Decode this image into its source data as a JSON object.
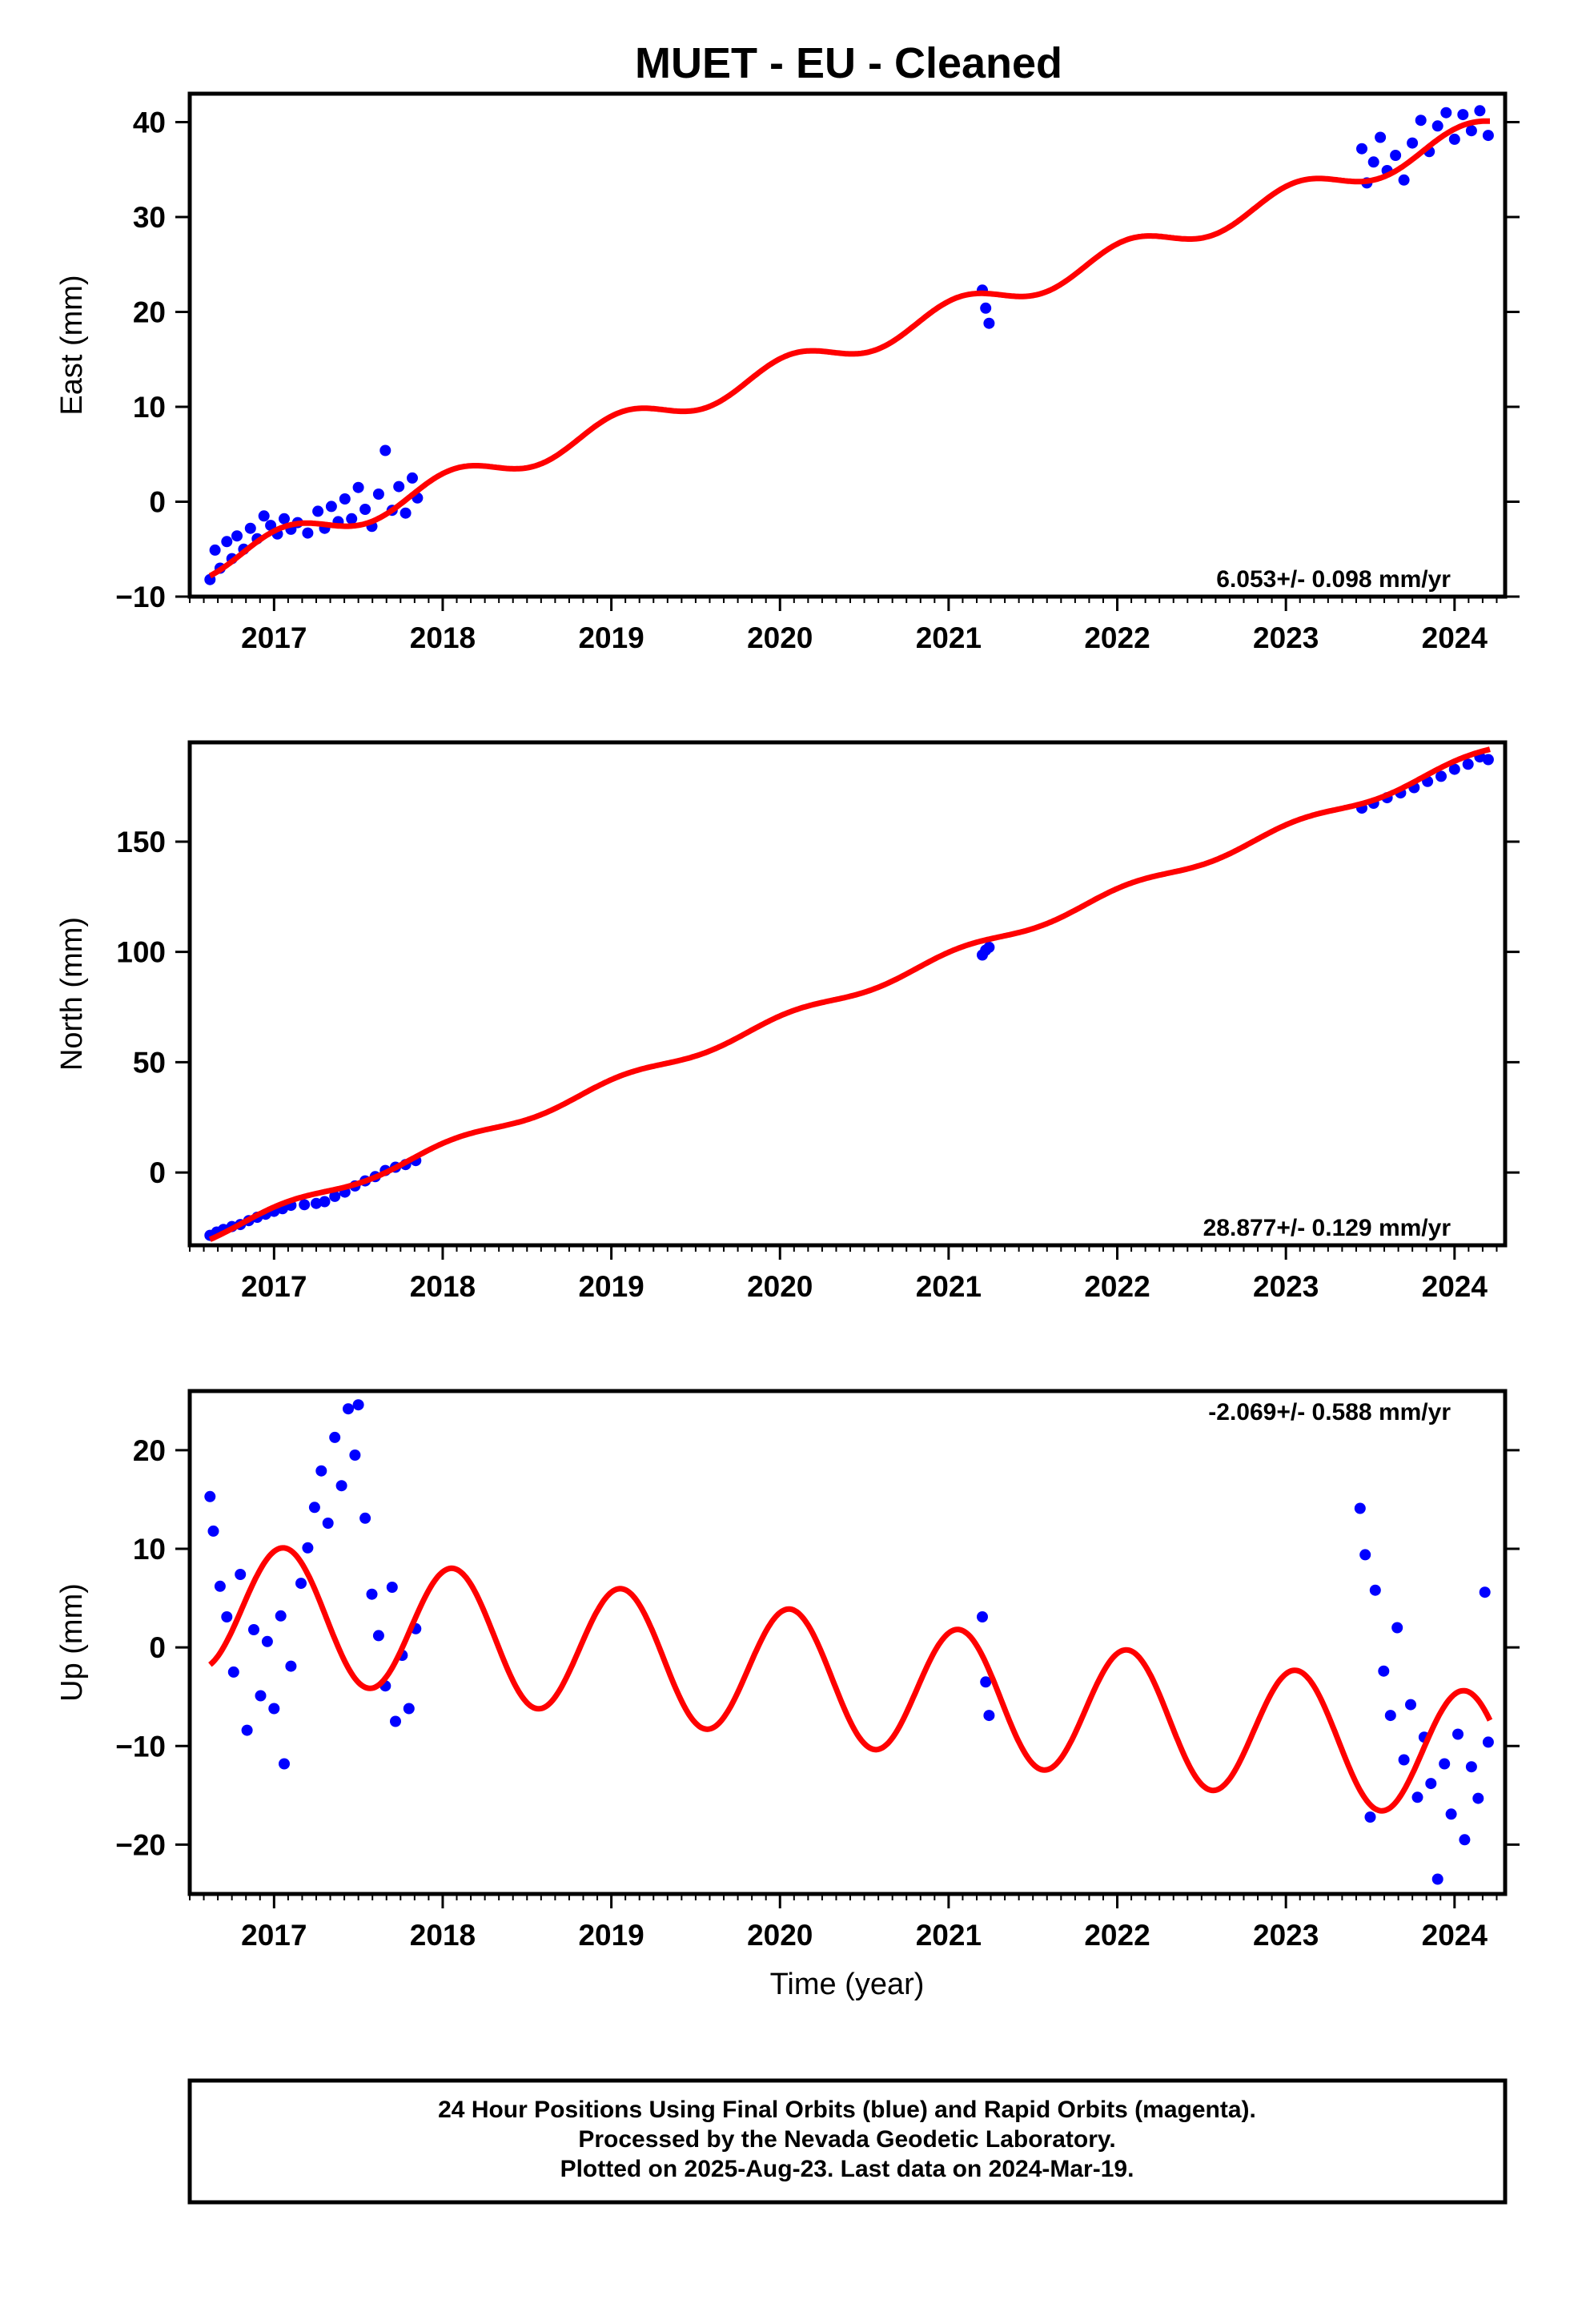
{
  "figure": {
    "title": "MUET  - EU - Cleaned",
    "xlabel": "Time (year)",
    "footer": [
      "24 Hour Positions Using Final Orbits (blue) and Rapid Orbits (magenta).",
      "Processed by the Nevada Geodetic Laboratory.",
      "Plotted on 2025-Aug-23. Last data on 2024-Mar-19."
    ]
  },
  "colors": {
    "observations": "#0000ff",
    "model_fit": "#ff0000",
    "frame": "#000000"
  },
  "chart_data": [
    {
      "type": "scatter",
      "ylabel": "East (mm)",
      "rate_label": "6.053+/- 0.098 mm/yr",
      "rate_label_position": "bottom-right",
      "xlim": [
        2016.5,
        2024.3
      ],
      "ylim": [
        -10,
        43
      ],
      "xticks": [
        2017,
        2018,
        2019,
        2020,
        2021,
        2022,
        2023,
        2024
      ],
      "yticks": [
        -10,
        0,
        10,
        20,
        30,
        40
      ],
      "fit": {
        "offset_at_2016_6": -6.6,
        "rate": 6.053,
        "annual_amplitude": 1.3
      },
      "series": [
        {
          "name": "observations",
          "points": [
            [
              2016.62,
              -8.2
            ],
            [
              2016.65,
              -5.1
            ],
            [
              2016.68,
              -7.0
            ],
            [
              2016.72,
              -4.2
            ],
            [
              2016.75,
              -6.0
            ],
            [
              2016.78,
              -3.6
            ],
            [
              2016.82,
              -5.0
            ],
            [
              2016.86,
              -2.8
            ],
            [
              2016.9,
              -3.9
            ],
            [
              2016.94,
              -1.5
            ],
            [
              2016.98,
              -2.5
            ],
            [
              2017.02,
              -3.4
            ],
            [
              2017.06,
              -1.8
            ],
            [
              2017.1,
              -2.9
            ],
            [
              2017.14,
              -2.2
            ],
            [
              2017.2,
              -3.3
            ],
            [
              2017.26,
              -1.0
            ],
            [
              2017.3,
              -2.8
            ],
            [
              2017.34,
              -0.5
            ],
            [
              2017.38,
              -2.1
            ],
            [
              2017.42,
              0.3
            ],
            [
              2017.46,
              -1.8
            ],
            [
              2017.5,
              1.5
            ],
            [
              2017.54,
              -0.8
            ],
            [
              2017.58,
              -2.6
            ],
            [
              2017.62,
              0.8
            ],
            [
              2017.66,
              5.4
            ],
            [
              2017.7,
              -0.9
            ],
            [
              2017.74,
              1.6
            ],
            [
              2017.78,
              -1.2
            ],
            [
              2017.82,
              2.5
            ],
            [
              2017.85,
              0.4
            ],
            [
              2021.2,
              22.3
            ],
            [
              2021.22,
              20.4
            ],
            [
              2021.24,
              18.8
            ],
            [
              2023.45,
              37.2
            ],
            [
              2023.48,
              33.6
            ],
            [
              2023.52,
              35.8
            ],
            [
              2023.56,
              38.4
            ],
            [
              2023.6,
              34.9
            ],
            [
              2023.65,
              36.5
            ],
            [
              2023.7,
              33.9
            ],
            [
              2023.75,
              37.8
            ],
            [
              2023.8,
              40.2
            ],
            [
              2023.85,
              36.9
            ],
            [
              2023.9,
              39.6
            ],
            [
              2023.95,
              41.0
            ],
            [
              2024.0,
              38.2
            ],
            [
              2024.05,
              40.8
            ],
            [
              2024.1,
              39.1
            ],
            [
              2024.15,
              41.2
            ],
            [
              2024.2,
              38.6
            ]
          ]
        }
      ]
    },
    {
      "type": "scatter",
      "ylabel": "North (mm)",
      "rate_label": "28.877+/- 0.129 mm/yr",
      "rate_label_position": "bottom-right",
      "xlim": [
        2016.5,
        2024.3
      ],
      "ylim": [
        -33,
        195
      ],
      "xticks": [
        2017,
        2018,
        2019,
        2020,
        2021,
        2022,
        2023,
        2024
      ],
      "yticks": [
        0,
        50,
        100,
        150
      ],
      "fit": {
        "offset_at_2016_6": -28.5,
        "rate": 28.877,
        "annual_amplitude": 2.0
      },
      "series": [
        {
          "name": "observations",
          "points": [
            [
              2016.62,
              -28.5
            ],
            [
              2016.66,
              -27.0
            ],
            [
              2016.7,
              -25.8
            ],
            [
              2016.75,
              -24.5
            ],
            [
              2016.8,
              -23.6
            ],
            [
              2016.85,
              -21.8
            ],
            [
              2016.9,
              -20.3
            ],
            [
              2016.95,
              -18.9
            ],
            [
              2017.0,
              -17.6
            ],
            [
              2017.05,
              -16.4
            ],
            [
              2017.1,
              -14.9
            ],
            [
              2017.18,
              -14.6
            ],
            [
              2017.25,
              -14.0
            ],
            [
              2017.3,
              -13.2
            ],
            [
              2017.36,
              -10.8
            ],
            [
              2017.42,
              -8.9
            ],
            [
              2017.48,
              -6.1
            ],
            [
              2017.54,
              -3.8
            ],
            [
              2017.6,
              -1.9
            ],
            [
              2017.66,
              0.9
            ],
            [
              2017.72,
              2.4
            ],
            [
              2017.78,
              3.6
            ],
            [
              2017.84,
              5.4
            ],
            [
              2021.2,
              98.6
            ],
            [
              2021.22,
              100.8
            ],
            [
              2021.24,
              102.1
            ],
            [
              2023.45,
              165.2
            ],
            [
              2023.52,
              167.4
            ],
            [
              2023.6,
              169.9
            ],
            [
              2023.68,
              172.1
            ],
            [
              2023.76,
              174.5
            ],
            [
              2023.84,
              177.3
            ],
            [
              2023.92,
              179.6
            ],
            [
              2024.0,
              182.8
            ],
            [
              2024.08,
              185.1
            ],
            [
              2024.15,
              188.4
            ],
            [
              2024.2,
              187.2
            ]
          ]
        }
      ]
    },
    {
      "type": "scatter",
      "ylabel": "Up (mm)",
      "rate_label": "-2.069+/- 0.588 mm/yr",
      "rate_label_position": "top-right",
      "xlim": [
        2016.5,
        2024.3
      ],
      "ylim": [
        -25,
        26
      ],
      "xticks": [
        2017,
        2018,
        2019,
        2020,
        2021,
        2022,
        2023,
        2024
      ],
      "yticks": [
        -20,
        -10,
        0,
        10,
        20
      ],
      "fit": {
        "offset_at_2016_6": 4.4,
        "rate": -2.069,
        "annual_amplitude": 6.6
      },
      "series": [
        {
          "name": "observations",
          "points": [
            [
              2016.62,
              15.3
            ],
            [
              2016.64,
              11.8
            ],
            [
              2016.68,
              6.2
            ],
            [
              2016.72,
              3.1
            ],
            [
              2016.76,
              -2.5
            ],
            [
              2016.8,
              7.4
            ],
            [
              2016.84,
              -8.4
            ],
            [
              2016.88,
              1.8
            ],
            [
              2016.92,
              -4.9
            ],
            [
              2016.96,
              0.6
            ],
            [
              2017.0,
              -6.2
            ],
            [
              2017.04,
              3.2
            ],
            [
              2017.06,
              -11.8
            ],
            [
              2017.1,
              -1.9
            ],
            [
              2017.16,
              6.5
            ],
            [
              2017.2,
              10.1
            ],
            [
              2017.24,
              14.2
            ],
            [
              2017.28,
              17.9
            ],
            [
              2017.32,
              12.6
            ],
            [
              2017.36,
              21.3
            ],
            [
              2017.4,
              16.4
            ],
            [
              2017.44,
              24.2
            ],
            [
              2017.48,
              19.5
            ],
            [
              2017.5,
              24.6
            ],
            [
              2017.54,
              13.1
            ],
            [
              2017.58,
              5.4
            ],
            [
              2017.62,
              1.2
            ],
            [
              2017.66,
              -3.9
            ],
            [
              2017.7,
              6.1
            ],
            [
              2017.72,
              -7.5
            ],
            [
              2017.76,
              -0.8
            ],
            [
              2017.8,
              -6.2
            ],
            [
              2017.84,
              1.9
            ],
            [
              2021.2,
              3.1
            ],
            [
              2021.22,
              -3.5
            ],
            [
              2021.24,
              -6.9
            ],
            [
              2023.44,
              14.1
            ],
            [
              2023.47,
              9.4
            ],
            [
              2023.5,
              -17.2
            ],
            [
              2023.53,
              5.8
            ],
            [
              2023.58,
              -2.4
            ],
            [
              2023.62,
              -6.9
            ],
            [
              2023.66,
              2.0
            ],
            [
              2023.7,
              -11.4
            ],
            [
              2023.74,
              -5.8
            ],
            [
              2023.78,
              -15.2
            ],
            [
              2023.82,
              -9.1
            ],
            [
              2023.86,
              -13.8
            ],
            [
              2023.9,
              -23.5
            ],
            [
              2023.94,
              -11.8
            ],
            [
              2023.98,
              -16.9
            ],
            [
              2024.02,
              -8.8
            ],
            [
              2024.06,
              -19.5
            ],
            [
              2024.1,
              -12.1
            ],
            [
              2024.14,
              -15.3
            ],
            [
              2024.18,
              5.6
            ],
            [
              2024.2,
              -9.6
            ]
          ]
        }
      ]
    }
  ]
}
